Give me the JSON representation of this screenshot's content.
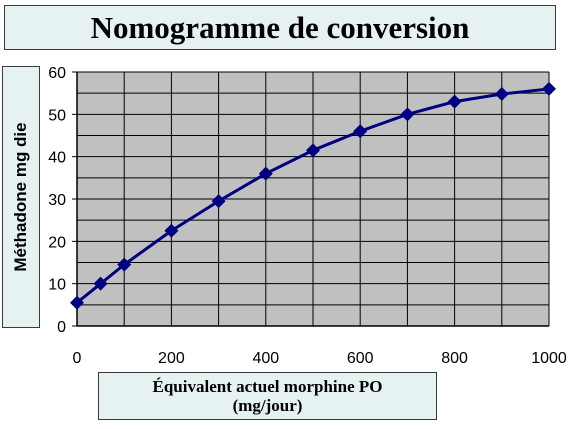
{
  "chart_data": {
    "type": "line",
    "title": "Nomogramme de conversion",
    "xlabel_line1": "Équivalent  actuel morphine PO",
    "xlabel_line2": "(mg/jour)",
    "ylabel": "Méthadone mg die",
    "x": [
      0,
      50,
      100,
      200,
      300,
      400,
      500,
      600,
      700,
      800,
      900,
      1000
    ],
    "series": [
      {
        "values": [
          5.5,
          10,
          14.5,
          22.5,
          29.5,
          36,
          41.5,
          46,
          50,
          53,
          54.8,
          56
        ]
      }
    ],
    "xlim": [
      0,
      1000
    ],
    "ylim": [
      0,
      60
    ],
    "xticks": [
      0,
      200,
      400,
      600,
      800,
      1000
    ],
    "yticks": [
      0,
      10,
      20,
      30,
      40,
      50,
      60
    ],
    "x_gridlines": [
      0,
      100,
      200,
      300,
      400,
      500,
      600,
      700,
      800,
      900,
      1000
    ],
    "y_gridlines": [
      0,
      5,
      10,
      15,
      20,
      25,
      30,
      35,
      40,
      45,
      50,
      55,
      60
    ],
    "grid": true,
    "legend": "none",
    "colors": {
      "plot_background": "#c0c0c0",
      "line": "#000080",
      "marker": "#000080",
      "grid": "#000000"
    }
  }
}
